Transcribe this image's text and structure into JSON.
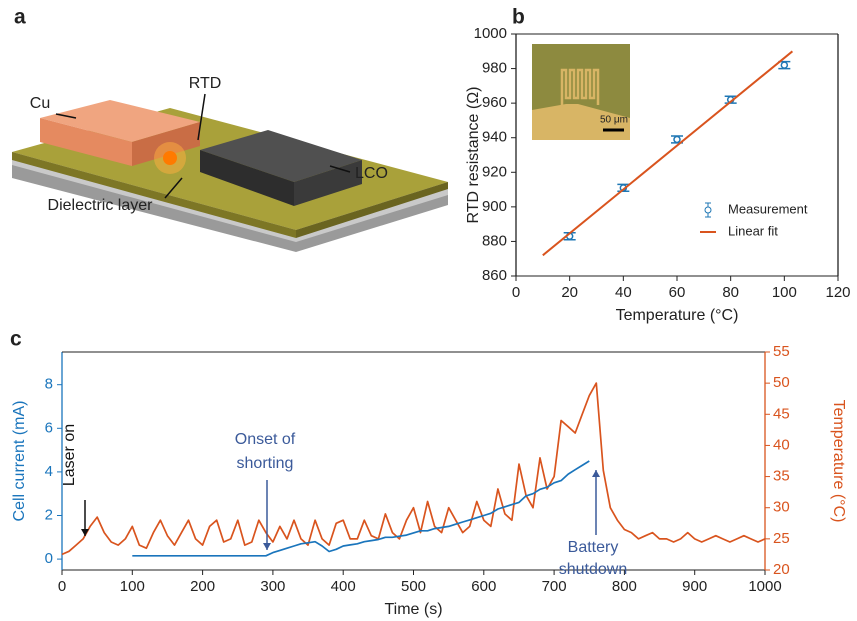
{
  "diagram": {
    "panel_label": "a",
    "labels": {
      "cu": "Cu",
      "rtd": "RTD",
      "lco": "LCO",
      "dielectric": "Dielectric layer"
    }
  },
  "chart_data": [
    {
      "type": "scatter",
      "panel_label": "b",
      "x_label": "Temperature (°C)",
      "y_label": "RTD resistance (Ω)",
      "xlim": [
        0,
        120
      ],
      "xticks": [
        0,
        20,
        40,
        60,
        80,
        100,
        120
      ],
      "ylim": [
        860,
        1000
      ],
      "yticks": [
        860,
        880,
        900,
        920,
        940,
        960,
        980,
        1000
      ],
      "legend": "lower right",
      "inset_scale_label": "50 μm",
      "series": [
        {
          "name": "Measurement",
          "type": "scatter",
          "color": "#1f77b4",
          "x": [
            20,
            40,
            60,
            80,
            100
          ],
          "values": [
            883,
            911,
            939,
            962,
            982
          ],
          "errors": [
            2,
            2,
            2,
            2,
            2
          ]
        },
        {
          "name": "Linear fit",
          "type": "line",
          "color": "#d9541e",
          "x": [
            10,
            103
          ],
          "values": [
            872,
            990
          ]
        }
      ]
    },
    {
      "type": "line",
      "panel_label": "c",
      "x_label": "Time (s)",
      "y_label": "Cell current (mA)",
      "y2_label": "Temperature (°C)",
      "xlim": [
        0,
        1000
      ],
      "xticks": [
        0,
        100,
        200,
        300,
        400,
        500,
        600,
        700,
        800,
        900,
        1000
      ],
      "ylim": [
        -0.5,
        9.5
      ],
      "yticks": [
        0,
        2,
        4,
        6,
        8
      ],
      "y2lim": [
        20,
        55
      ],
      "y2ticks": [
        20,
        25,
        30,
        35,
        40,
        45,
        50,
        55
      ],
      "annotations": [
        {
          "lines": [
            "Laser on"
          ]
        },
        {
          "lines": [
            "Onset of",
            "shorting"
          ]
        },
        {
          "lines": [
            "Battery",
            "shutdown"
          ]
        }
      ],
      "x": [
        0,
        10,
        20,
        30,
        40,
        50,
        60,
        70,
        80,
        90,
        100,
        110,
        120,
        130,
        140,
        150,
        160,
        170,
        180,
        190,
        200,
        210,
        220,
        230,
        240,
        250,
        260,
        270,
        280,
        290,
        300,
        310,
        320,
        330,
        340,
        350,
        360,
        370,
        380,
        390,
        400,
        410,
        420,
        430,
        440,
        450,
        460,
        470,
        480,
        490,
        500,
        510,
        520,
        530,
        540,
        550,
        560,
        570,
        580,
        590,
        600,
        610,
        620,
        630,
        640,
        650,
        660,
        670,
        680,
        690,
        700,
        710,
        720,
        730,
        740,
        750,
        760,
        770,
        780,
        790,
        800,
        810,
        820,
        830,
        840,
        850,
        860,
        870,
        880,
        890,
        900,
        910,
        920,
        930,
        940,
        950,
        960,
        970,
        980,
        990,
        1000
      ],
      "series": [
        {
          "color": "#1a75bc",
          "axis": "y",
          "values": [
            null,
            null,
            null,
            null,
            null,
            null,
            null,
            null,
            null,
            null,
            0.15,
            0.15,
            0.15,
            0.15,
            0.15,
            0.15,
            0.15,
            0.15,
            0.15,
            0.15,
            0.15,
            0.15,
            0.15,
            0.15,
            0.15,
            0.15,
            0.15,
            0.15,
            0.15,
            0.15,
            0.3,
            0.4,
            0.5,
            0.6,
            0.7,
            0.75,
            0.8,
            0.6,
            0.35,
            0.45,
            0.6,
            0.65,
            0.7,
            0.8,
            0.85,
            0.9,
            1.0,
            1.0,
            1.05,
            1.1,
            1.2,
            1.3,
            1.3,
            1.4,
            1.45,
            1.5,
            1.6,
            1.7,
            1.8,
            1.9,
            2.0,
            2.1,
            2.3,
            2.4,
            2.5,
            2.6,
            2.9,
            3.0,
            3.2,
            3.3,
            3.5,
            3.6,
            3.9,
            4.1,
            4.3,
            4.5,
            null,
            null,
            null,
            null,
            null,
            null,
            null,
            null,
            null,
            null,
            null,
            null,
            null,
            null,
            null,
            null,
            null,
            null,
            null,
            null,
            null,
            null,
            null,
            null,
            null
          ]
        },
        {
          "color": "#d9541e",
          "axis": "y2",
          "values": [
            22.5,
            23,
            24,
            25,
            27,
            28.5,
            26,
            24.5,
            24,
            25,
            27,
            24,
            23.5,
            26,
            28,
            25.5,
            24,
            26,
            28,
            25,
            24,
            27,
            28,
            24.5,
            25,
            28,
            24,
            24.5,
            28,
            26,
            24.5,
            27,
            25,
            28,
            25,
            24,
            28,
            25,
            24,
            27.5,
            28,
            25,
            25,
            28,
            25.5,
            25,
            29,
            26,
            25,
            28,
            30,
            26,
            31,
            27,
            26,
            30,
            28,
            26,
            27,
            31,
            28,
            27,
            33,
            29,
            28,
            37,
            32,
            30,
            38,
            33,
            35,
            44,
            43,
            42,
            45,
            48,
            50,
            36,
            30,
            28,
            26.5,
            26,
            25,
            25.5,
            26,
            25,
            25,
            24.5,
            25,
            26,
            25,
            24.5,
            25,
            25.5,
            25,
            24.5,
            25,
            25.5,
            25,
            24.5,
            25
          ]
        }
      ]
    }
  ]
}
